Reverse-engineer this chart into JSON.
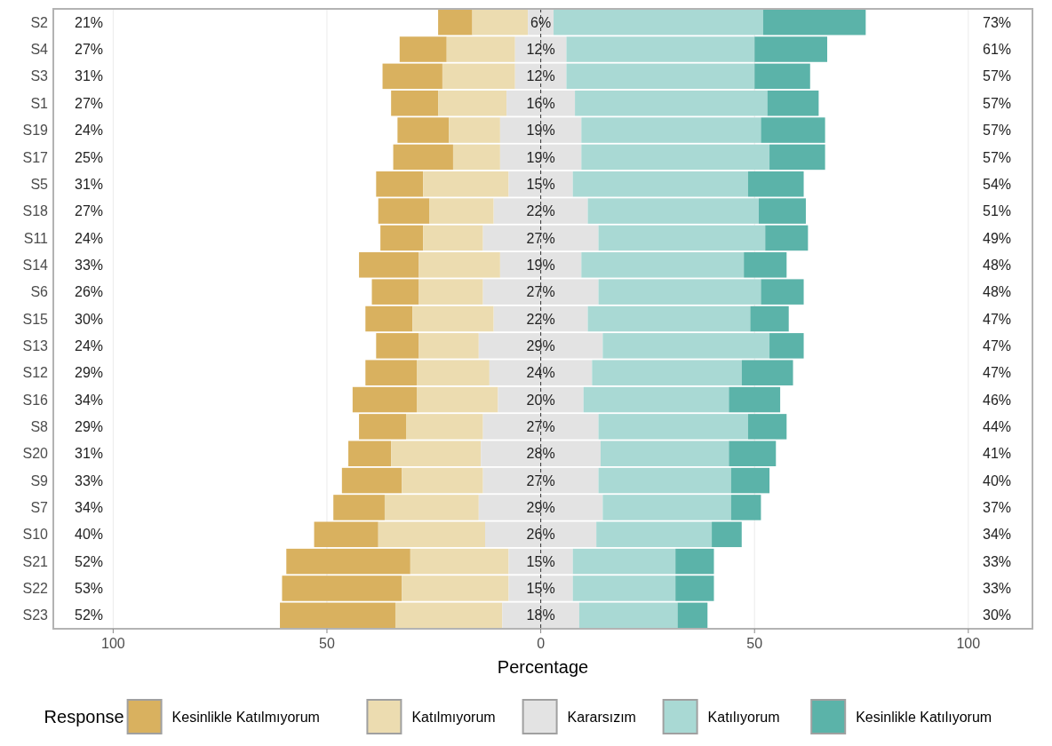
{
  "chart_data": {
    "type": "bar",
    "orientation": "horizontal",
    "xlabel": "Percentage",
    "legend_title": "Response",
    "legend": "bottom",
    "grid": "x",
    "categories": [
      "S2",
      "S4",
      "S3",
      "S1",
      "S19",
      "S17",
      "S5",
      "S18",
      "S11",
      "S14",
      "S6",
      "S15",
      "S13",
      "S12",
      "S16",
      "S8",
      "S20",
      "S9",
      "S7",
      "S10",
      "S21",
      "S22",
      "S23"
    ],
    "xlim": [
      -114,
      115
    ],
    "xticks": [
      {
        "value": -100,
        "label": "100"
      },
      {
        "value": -50,
        "label": "50"
      },
      0,
      50,
      100
    ],
    "series": [
      {
        "name": "Kesinlikle Katılmıyorum",
        "color": "#d9b15f",
        "values": [
          8,
          11,
          14,
          11,
          12,
          14,
          11,
          12,
          10,
          14,
          11,
          11,
          10,
          12,
          15,
          11,
          10,
          14,
          12,
          15,
          29,
          28,
          27
        ],
        "base": [
          -24,
          -33,
          -37,
          -35,
          -33.5,
          -34.5,
          -38.5,
          -38,
          -37.5,
          -42.5,
          -39.5,
          -41,
          -38.5,
          -41,
          -44,
          -42.5,
          -45,
          -46.5,
          -48.5,
          -53,
          -59.5,
          -60.5,
          -61
        ]
      },
      {
        "name": "Katılmıyorum",
        "color": "#ecdcb0",
        "values": [
          13,
          16,
          17,
          16,
          12,
          11,
          20,
          15,
          14,
          19,
          15,
          19,
          14,
          17,
          19,
          18,
          21,
          19,
          22,
          25,
          23,
          25,
          25
        ],
        "base": [
          -16,
          -22,
          -23,
          -24,
          -21.5,
          -20.5,
          -27.5,
          -26,
          -27.5,
          -28.5,
          -28.5,
          -30,
          -28.5,
          -29,
          -29,
          -31.5,
          -35,
          -32.5,
          -36.5,
          -38,
          -30.5,
          -32.5,
          -34
        ]
      },
      {
        "name": "Kararsızım",
        "color": "#e3e3e3",
        "values": [
          6,
          12,
          12,
          16,
          19,
          19,
          15,
          22,
          27,
          19,
          27,
          22,
          29,
          24,
          20,
          27,
          28,
          27,
          29,
          26,
          15,
          15,
          18
        ],
        "base": [
          -3,
          -6,
          -6,
          -8,
          -9.5,
          -9.5,
          -7.5,
          -11,
          -13.5,
          -9.5,
          -13.5,
          -11,
          -14.5,
          -12,
          -10,
          -13.5,
          -14,
          -13.5,
          -14.5,
          -13,
          -7.5,
          -7.5,
          -9
        ],
        "value_labels": [
          "6%",
          "12%",
          "12%",
          "16%",
          "19%",
          "19%",
          "15%",
          "22%",
          "27%",
          "19%",
          "27%",
          "22%",
          "29%",
          "24%",
          "20%",
          "27%",
          "28%",
          "27%",
          "29%",
          "26%",
          "15%",
          "15%",
          "18%"
        ]
      },
      {
        "name": "Katılıyorum",
        "color": "#a9d9d4",
        "values": [
          49,
          44,
          44,
          45,
          42,
          44,
          41,
          40,
          39,
          38,
          38,
          38,
          39,
          35,
          34,
          35,
          30,
          31,
          30,
          27,
          24,
          24,
          23
        ],
        "base": [
          3,
          6,
          6,
          8,
          9.5,
          9.5,
          7.5,
          11,
          13.5,
          9.5,
          13.5,
          11,
          14.5,
          12,
          10,
          13.5,
          14,
          13.5,
          14.5,
          13,
          7.5,
          7.5,
          9
        ]
      },
      {
        "name": "Kesinlikle Katılıyorum",
        "color": "#5bb3a9",
        "values": [
          24,
          17,
          13,
          12,
          15,
          13,
          13,
          11,
          10,
          10,
          10,
          9,
          8,
          12,
          12,
          9,
          11,
          9,
          7,
          7,
          9,
          9,
          7
        ],
        "base": [
          52,
          50,
          50,
          53,
          51.5,
          53.5,
          48.5,
          51,
          52.5,
          47.5,
          51.5,
          49,
          53.5,
          47,
          44,
          48.5,
          44,
          44.5,
          44.5,
          40,
          31.5,
          31.5,
          32
        ]
      }
    ],
    "ref_lines": [
      {
        "axis": "x",
        "value": 0,
        "line_style": "dashed",
        "color": "#333333"
      }
    ],
    "annotations": [
      "21%",
      "73%",
      "27%",
      "61%",
      "31%",
      "57%",
      "27%",
      "57%",
      "24%",
      "57%",
      "25%",
      "57%",
      "31%",
      "54%",
      "27%",
      "51%",
      "24%",
      "49%",
      "33%",
      "48%",
      "26%",
      "48%",
      "30%",
      "47%",
      "24%",
      "47%",
      "29%",
      "47%",
      "34%",
      "46%",
      "29%",
      "44%",
      "31%",
      "41%",
      "33%",
      "40%",
      "34%",
      "37%",
      "40%",
      "34%",
      "52%",
      "33%",
      "53%",
      "33%",
      "52%",
      "30%"
    ]
  }
}
